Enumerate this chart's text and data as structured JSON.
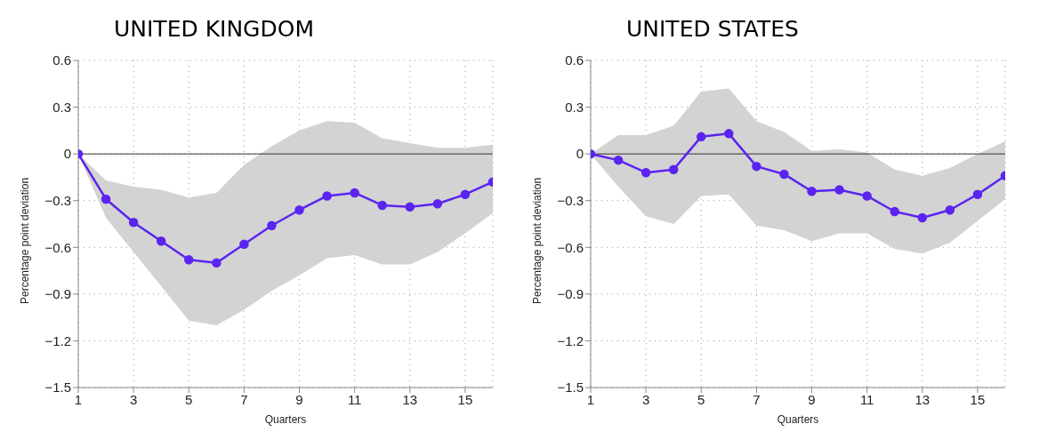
{
  "chart_data": [
    {
      "type": "line",
      "title": "UNITED KINGDOM",
      "xlabel": "Quarters",
      "ylabel": "Percentage point deviation",
      "x": [
        1,
        2,
        3,
        4,
        5,
        6,
        7,
        8,
        9,
        10,
        11,
        12,
        13,
        14,
        15,
        16
      ],
      "series": [
        {
          "color": "#5b24f0",
          "values": [
            0,
            -0.29,
            -0.44,
            -0.56,
            -0.68,
            -0.7,
            -0.58,
            -0.46,
            -0.36,
            -0.27,
            -0.25,
            -0.33,
            -0.34,
            -0.32,
            -0.26,
            -0.18
          ],
          "lower": [
            0,
            -0.41,
            -0.63,
            -0.85,
            -1.07,
            -1.1,
            -1.0,
            -0.88,
            -0.78,
            -0.67,
            -0.65,
            -0.71,
            -0.71,
            -0.63,
            -0.51,
            -0.38
          ],
          "upper": [
            0,
            -0.17,
            -0.21,
            -0.23,
            -0.28,
            -0.25,
            -0.07,
            0.05,
            0.15,
            0.21,
            0.2,
            0.1,
            0.07,
            0.04,
            0.04,
            0.06
          ]
        }
      ],
      "xlim": [
        1,
        16
      ],
      "xticks": [
        1,
        3,
        5,
        7,
        9,
        11,
        13,
        15
      ],
      "ylim": [
        -1.5,
        0.6
      ],
      "yticks": [
        {
          "value": -1.5,
          "label": "−1.5"
        },
        {
          "value": -1.2,
          "label": "−1.2"
        },
        {
          "value": -0.9,
          "label": "−0.9"
        },
        {
          "value": -0.6,
          "label": "−0.6"
        },
        {
          "value": -0.3,
          "label": "−0.3"
        },
        0,
        0.3,
        0.6
      ],
      "ref_lines": [
        {
          "axis": "y",
          "value": 0,
          "color": "#333333"
        }
      ],
      "grid": true,
      "marker": "circle",
      "line_style": "solid",
      "legend": false
    },
    {
      "type": "line",
      "title": "UNITED STATES",
      "xlabel": "Quarters",
      "ylabel": "Percentage point deviation",
      "x": [
        1,
        2,
        3,
        4,
        5,
        6,
        7,
        8,
        9,
        10,
        11,
        12,
        13,
        14,
        15,
        16
      ],
      "series": [
        {
          "color": "#5b24f0",
          "values": [
            0,
            -0.04,
            -0.12,
            -0.1,
            0.11,
            0.13,
            -0.08,
            -0.13,
            -0.24,
            -0.23,
            -0.27,
            -0.37,
            -0.41,
            -0.36,
            -0.26,
            -0.14
          ],
          "lower": [
            0,
            -0.21,
            -0.4,
            -0.45,
            -0.27,
            -0.26,
            -0.46,
            -0.49,
            -0.56,
            -0.51,
            -0.51,
            -0.61,
            -0.64,
            -0.57,
            -0.43,
            -0.29
          ],
          "upper": [
            0,
            0.12,
            0.12,
            0.18,
            0.4,
            0.42,
            0.21,
            0.14,
            0.02,
            0.03,
            0.01,
            -0.1,
            -0.14,
            -0.09,
            0.0,
            0.08
          ]
        }
      ],
      "xlim": [
        1,
        16
      ],
      "xticks": [
        1,
        3,
        5,
        7,
        9,
        11,
        13,
        15
      ],
      "ylim": [
        -1.5,
        0.6
      ],
      "yticks": [
        {
          "value": -1.5,
          "label": "−1.5"
        },
        {
          "value": -1.2,
          "label": "−1.2"
        },
        {
          "value": -0.9,
          "label": "−0.9"
        },
        {
          "value": -0.6,
          "label": "−0.6"
        },
        {
          "value": -0.3,
          "label": "−0.3"
        },
        0,
        0.3,
        0.6
      ],
      "ref_lines": [
        {
          "axis": "y",
          "value": 0,
          "color": "#333333"
        }
      ],
      "grid": true,
      "marker": "circle",
      "line_style": "solid",
      "legend": false
    }
  ]
}
